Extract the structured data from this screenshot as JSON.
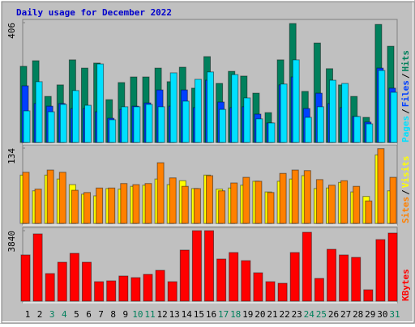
{
  "chart_data": [
    {
      "type": "bar",
      "title": "Daily usage for December 2022",
      "ylim": [
        0,
        406
      ],
      "yticks": [
        406
      ],
      "legend_separator": "/",
      "series": [
        {
          "name": "Hits",
          "color": "#00805c",
          "values": [
            258,
            277,
            156,
            195,
            280,
            252,
            269,
            145,
            203,
            222,
            222,
            252,
            206,
            255,
            184,
            291,
            200,
            241,
            225,
            167,
            101,
            280,
            403,
            173,
            337,
            250,
            195,
            156,
            85,
            400,
            326
          ]
        },
        {
          "name": "Files",
          "color": "#0040ff",
          "values": [
            192,
            132,
            123,
            132,
            115,
            115,
            104,
            82,
            112,
            123,
            134,
            178,
            123,
            178,
            118,
            211,
            137,
            118,
            121,
            96,
            66,
            195,
            222,
            115,
            167,
            132,
            118,
            88,
            69,
            252,
            184
          ]
        },
        {
          "name": "Pages",
          "color": "#00e0ff",
          "values": [
            107,
            206,
            104,
            129,
            176,
            126,
            266,
            77,
            121,
            121,
            129,
            121,
            236,
            140,
            214,
            239,
            112,
            230,
            151,
            80,
            66,
            198,
            280,
            85,
            121,
            211,
            200,
            88,
            63,
            244,
            170
          ]
        }
      ]
    },
    {
      "type": "bar",
      "ylim": [
        0,
        134
      ],
      "yticks": [
        134
      ],
      "legend_separator": "/",
      "series": [
        {
          "name": "Visits",
          "color": "#ffff00",
          "values": [
            86,
            58,
            86,
            79,
            69,
            52,
            49,
            62,
            61,
            66,
            68,
            79,
            69,
            76,
            62,
            86,
            61,
            63,
            68,
            75,
            56,
            75,
            79,
            85,
            62,
            63,
            73,
            56,
            48,
            122,
            58
          ]
        },
        {
          "name": "Sites",
          "color": "#ff8000",
          "values": [
            91,
            61,
            95,
            91,
            59,
            55,
            63,
            63,
            71,
            69,
            71,
            108,
            81,
            66,
            62,
            85,
            58,
            72,
            82,
            75,
            55,
            89,
            95,
            94,
            78,
            68,
            76,
            66,
            40,
            133,
            82
          ]
        }
      ]
    },
    {
      "type": "bar",
      "ylim": [
        0,
        3840
      ],
      "yticks": [
        3840
      ],
      "categories": [
        "1",
        "2",
        "3",
        "4",
        "5",
        "6",
        "7",
        "8",
        "9",
        "10",
        "11",
        "12",
        "13",
        "14",
        "15",
        "16",
        "17",
        "18",
        "19",
        "20",
        "21",
        "22",
        "23",
        "24",
        "25",
        "26",
        "27",
        "28",
        "29",
        "30",
        "31"
      ],
      "category_label_colors": [
        "#000000",
        "#000000",
        "#00805c",
        "#00805c",
        "#000000",
        "#000000",
        "#000000",
        "#000000",
        "#000000",
        "#00805c",
        "#00805c",
        "#000000",
        "#000000",
        "#000000",
        "#000000",
        "#000000",
        "#00805c",
        "#00805c",
        "#000000",
        "#000000",
        "#000000",
        "#000000",
        "#000000",
        "#00805c",
        "#00805c",
        "#000000",
        "#000000",
        "#000000",
        "#000000",
        "#000000",
        "#00805c"
      ],
      "series": [
        {
          "name": "KBytes",
          "color": "#ff0000",
          "values": [
            2516,
            3664,
            1501,
            2119,
            2604,
            2119,
            1059,
            1104,
            1368,
            1280,
            1457,
            1677,
            1059,
            2781,
            3840,
            3840,
            2295,
            2648,
            2207,
            1545,
            1059,
            971,
            2648,
            3752,
            1236,
            2825,
            2516,
            2384,
            618,
            3355,
            3708
          ]
        }
      ]
    }
  ]
}
